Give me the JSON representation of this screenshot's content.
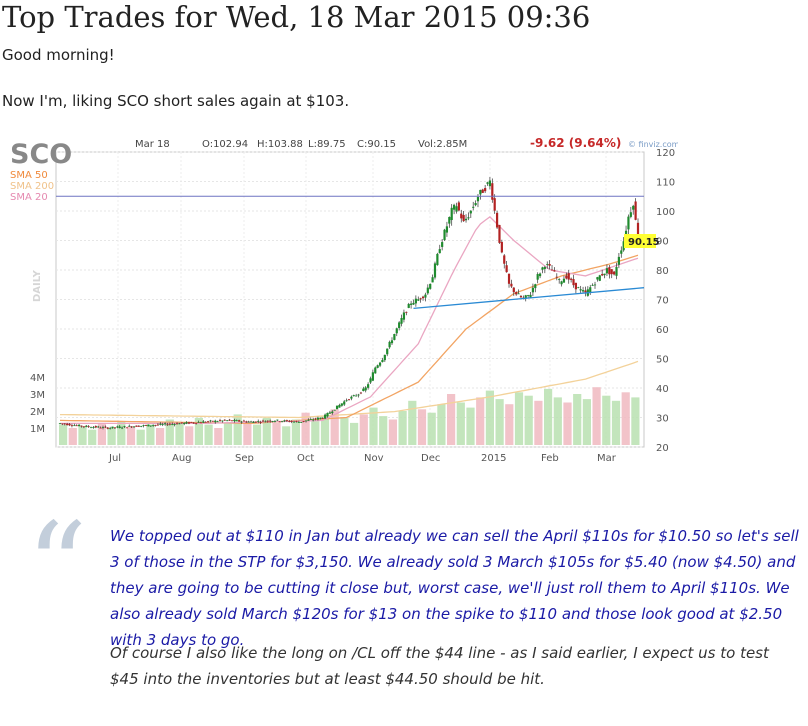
{
  "post": {
    "title": "Top Trades for Wed, 18 Mar 2015 09:36",
    "greeting": "Good morning!",
    "intro": "Now I'm, liking SCO short sales again at $103.",
    "quote_para1": "We topped out at $110 in Jan but already we can sell the April $110s for $10.50 so let's sell 3 of those in the STP for $3,150.   We already sold 3 March $105s for $5.40 (now $4.50) and they are going to be cutting it close but, worst case, we'll just roll them to April $110s.  We also already sold March $120s for $13 on the spike to $110 and those look good at $2.50 with 3 days to go.",
    "quote_para2": "Of course I also like the long on /CL off the $44 line - as I said earlier, I expect us to test $45 into the inventories but at least $44.50 should be hit."
  },
  "chart_data": {
    "type": "candlestick",
    "ticker": "SCO",
    "date": "Mar 18",
    "ohlc_text": {
      "open": "O:102.94",
      "high": "H:103.88",
      "low": "L:89.75",
      "close": "C:90.15",
      "volume": "Vol:2.85M"
    },
    "change_text": "-9.62 (9.64%)",
    "source": "© finviz.com",
    "period_label": "DAILY",
    "legend": [
      "SMA 50",
      "SMA 200",
      "SMA 20"
    ],
    "last_price_label": "90.15",
    "last_price": 90.15,
    "ylim": [
      20,
      120
    ],
    "y_ticks": [
      20,
      30,
      40,
      50,
      60,
      70,
      80,
      90,
      100,
      110,
      120
    ],
    "x_tick_labels": [
      "Jul",
      "Aug",
      "Sep",
      "Oct",
      "Nov",
      "Dec",
      "2015",
      "Feb",
      "Mar"
    ],
    "volume_labels": [
      "4M",
      "3M",
      "2M",
      "1M"
    ],
    "volume_max_m": 5,
    "horizontal_line": 105,
    "trendline": {
      "from": [
        148,
        67
      ],
      "to": [
        264,
        74
      ]
    },
    "price_path": [
      [
        0,
        28
      ],
      [
        10,
        27
      ],
      [
        20,
        26.5
      ],
      [
        30,
        27
      ],
      [
        40,
        27.5
      ],
      [
        50,
        28
      ],
      [
        60,
        28.5
      ],
      [
        70,
        29
      ],
      [
        80,
        28.5
      ],
      [
        90,
        29
      ],
      [
        100,
        28.5
      ],
      [
        110,
        30
      ],
      [
        115,
        33
      ],
      [
        120,
        36
      ],
      [
        125,
        38
      ],
      [
        128,
        40
      ],
      [
        130,
        43
      ],
      [
        132,
        47
      ],
      [
        135,
        50
      ],
      [
        138,
        55
      ],
      [
        141,
        60
      ],
      [
        144,
        65
      ],
      [
        147,
        69
      ],
      [
        150,
        70
      ],
      [
        153,
        72
      ],
      [
        156,
        78
      ],
      [
        159,
        88
      ],
      [
        162,
        95
      ],
      [
        164,
        100
      ],
      [
        166,
        102
      ],
      [
        169,
        96
      ],
      [
        172,
        100
      ],
      [
        175,
        105
      ],
      [
        178,
        108
      ],
      [
        180,
        110
      ],
      [
        182,
        100
      ],
      [
        185,
        85
      ],
      [
        188,
        75
      ],
      [
        191,
        72
      ],
      [
        194,
        70
      ],
      [
        197,
        72
      ],
      [
        200,
        78
      ],
      [
        203,
        82
      ],
      [
        206,
        80
      ],
      [
        209,
        76
      ],
      [
        212,
        78
      ],
      [
        215,
        75
      ],
      [
        218,
        73
      ],
      [
        220,
        72
      ],
      [
        223,
        75
      ],
      [
        226,
        78
      ],
      [
        229,
        80
      ],
      [
        232,
        78
      ],
      [
        234,
        85
      ],
      [
        236,
        90
      ],
      [
        238,
        98
      ],
      [
        240,
        103
      ],
      [
        242,
        90
      ]
    ],
    "sma20_path": [
      [
        0,
        28
      ],
      [
        60,
        28
      ],
      [
        110,
        29
      ],
      [
        130,
        37
      ],
      [
        150,
        55
      ],
      [
        165,
        80
      ],
      [
        175,
        95
      ],
      [
        180,
        98
      ],
      [
        190,
        90
      ],
      [
        205,
        80
      ],
      [
        220,
        78
      ],
      [
        242,
        84
      ]
    ],
    "sma50_path": [
      [
        0,
        29
      ],
      [
        80,
        28
      ],
      [
        120,
        30
      ],
      [
        150,
        42
      ],
      [
        170,
        60
      ],
      [
        190,
        72
      ],
      [
        210,
        78
      ],
      [
        230,
        82
      ],
      [
        242,
        85
      ]
    ],
    "sma200_path": [
      [
        0,
        31
      ],
      [
        100,
        30
      ],
      [
        140,
        32
      ],
      [
        180,
        37
      ],
      [
        220,
        43
      ],
      [
        242,
        49
      ]
    ],
    "volumes_m": [
      1.2,
      1.0,
      1.1,
      0.9,
      1.3,
      1.0,
      1.4,
      1.1,
      0.9,
      1.2,
      1.0,
      1.5,
      1.3,
      1.1,
      1.6,
      1.2,
      1.0,
      1.3,
      1.8,
      1.4,
      1.2,
      1.6,
      1.3,
      1.1,
      1.5,
      1.9,
      1.4,
      1.7,
      2.1,
      1.6,
      1.3,
      1.8,
      2.2,
      1.7,
      1.5,
      2.0,
      2.6,
      2.1,
      1.9,
      2.4,
      3.0,
      2.5,
      2.2,
      2.8,
      3.2,
      2.7,
      2.4,
      3.1,
      2.9,
      2.6,
      3.3,
      2.8,
      2.5,
      3.0,
      2.7,
      3.4,
      2.9,
      2.6,
      3.1,
      2.8
    ]
  }
}
